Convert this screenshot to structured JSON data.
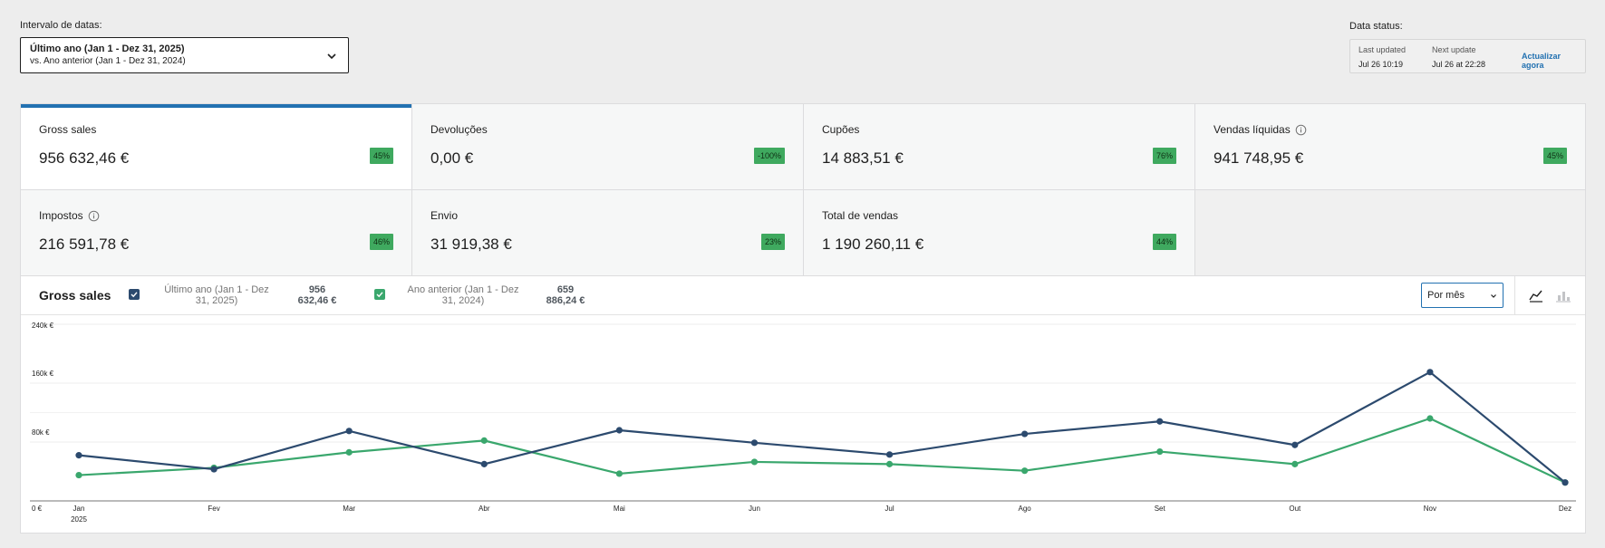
{
  "filters": {
    "label": "Intervalo de datas:",
    "primary": "Último ano (Jan 1 - Dez 31, 2025)",
    "secondary": "vs. Ano anterior (Jan 1 - Dez 31, 2024)"
  },
  "status": {
    "label": "Data status:",
    "last_updated_label": "Last updated",
    "last_updated_value": "Jul 26 10:19",
    "next_update_label": "Next update",
    "next_update_value": "Jul 26 at 22:28",
    "refresh_label": "Actualizar agora"
  },
  "cards": [
    {
      "label": "Gross sales",
      "value": "956 632,46 €",
      "delta": "45%",
      "info": false,
      "active": true
    },
    {
      "label": "Devoluções",
      "value": "0,00 €",
      "delta": "-100%",
      "info": false
    },
    {
      "label": "Cupões",
      "value": "14 883,51 €",
      "delta": "76%",
      "info": false
    },
    {
      "label": "Vendas líquidas",
      "value": "941 748,95 €",
      "delta": "45%",
      "info": true
    },
    {
      "label": "Impostos",
      "value": "216 591,78 €",
      "delta": "46%",
      "info": true
    },
    {
      "label": "Envio",
      "value": "31 919,38 €",
      "delta": "23%",
      "info": false
    },
    {
      "label": "Total de vendas",
      "value": "1 190 260,11 €",
      "delta": "44%",
      "info": false
    }
  ],
  "chart_header": {
    "title": "Gross sales",
    "legend": [
      {
        "line1": "Último ano (Jan 1 - Dez",
        "line2": "31, 2025)",
        "total1": "956",
        "total2": "632,46 €",
        "color": "#2c4a6e"
      },
      {
        "line1": "Ano anterior (Jan 1 - Dez",
        "line2": "31, 2024)",
        "total1": "659",
        "total2": "886,24 €",
        "color": "#3aa76d"
      }
    ],
    "interval": "Por mês",
    "chart_type_icons": [
      "line-chart-icon",
      "bar-chart-icon"
    ]
  },
  "chart_data": {
    "type": "line",
    "categories": [
      "Jan",
      "Fev",
      "Mar",
      "Abr",
      "Mai",
      "Jun",
      "Jul",
      "Ago",
      "Set",
      "Out",
      "Nov",
      "Dez"
    ],
    "year_label": "2025",
    "y_ticks": [
      "0 €",
      "80k €",
      "160k €",
      "240k €"
    ],
    "ylim": [
      0,
      240000
    ],
    "grid": true,
    "series": [
      {
        "name": "Último ano (Jan 1 - Dez 31, 2025)",
        "color": "#2c4a6e",
        "values": [
          62000,
          43000,
          95000,
          50000,
          96000,
          79000,
          63000,
          91000,
          108000,
          76000,
          175000,
          25000
        ]
      },
      {
        "name": "Ano anterior (Jan 1 - Dez 31, 2024)",
        "color": "#3aa76d",
        "values": [
          35000,
          45000,
          66000,
          82000,
          37000,
          53000,
          50000,
          41000,
          67000,
          50000,
          112000,
          25000
        ]
      }
    ]
  }
}
